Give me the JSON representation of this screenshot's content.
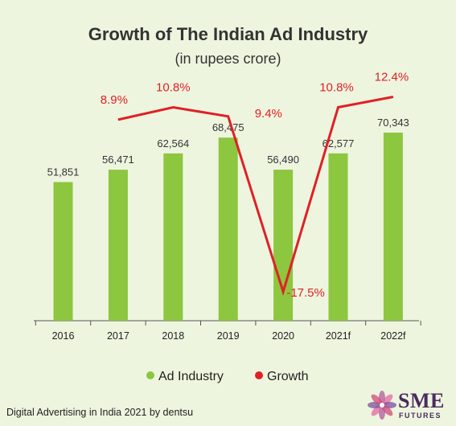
{
  "chart_data": {
    "type": "bar",
    "title": "Growth of The Indian Ad Industry",
    "subtitle": "(in rupees crore)",
    "categories": [
      "2016",
      "2017",
      "2018",
      "2019",
      "2020",
      "2021f",
      "2022f"
    ],
    "series": [
      {
        "name": "Ad Industry",
        "type": "bar",
        "color": "#8dc63f",
        "values": [
          51851,
          56471,
          62564,
          68475,
          56490,
          62577,
          70343
        ],
        "labels": [
          "51,851",
          "56,471",
          "62,564",
          "68,475",
          "56,490",
          "62,577",
          "70,343"
        ]
      },
      {
        "name": "Growth",
        "type": "line",
        "color": "#e02026",
        "values": [
          null,
          8.9,
          10.8,
          9.4,
          -17.5,
          10.8,
          12.4
        ],
        "labels": [
          "",
          "8.9%",
          "10.8%",
          "9.4%",
          "-17.5%",
          "10.8%",
          "12.4%"
        ]
      }
    ],
    "legend": {
      "position": "bottom"
    },
    "grid": false
  },
  "source": "Digital Advertising in India 2021 by dentsu",
  "logo": {
    "text": "SME",
    "subtext": "FUTURES"
  }
}
